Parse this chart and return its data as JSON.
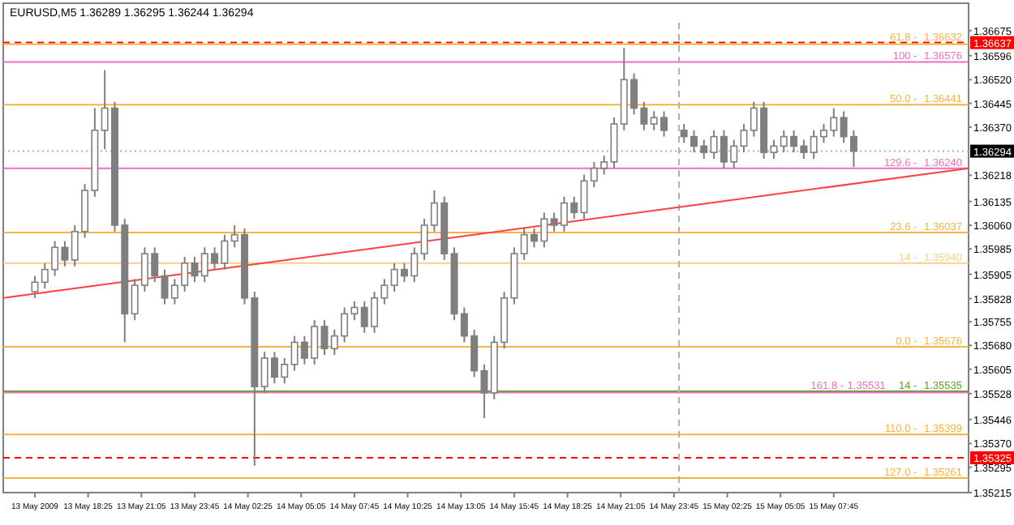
{
  "chart_data": {
    "type": "candlestick",
    "title": "EURUSD,M5  1.36289 1.36295 1.36244 1.36294",
    "color": "#7f7f7f",
    "x": [
      "2009-05-13T15:45",
      "2009-05-13T16:15",
      "2009-05-13T16:45",
      "2009-05-13T17:15",
      "2009-05-13T17:45",
      "2009-05-13T18:15",
      "2009-05-13T18:45",
      "2009-05-13T19:15",
      "2009-05-13T19:45",
      "2009-05-13T20:15",
      "2009-05-13T20:45",
      "2009-05-13T21:15",
      "2009-05-13T21:45",
      "2009-05-13T22:15",
      "2009-05-13T22:45",
      "2009-05-13T23:15",
      "2009-05-13T23:45",
      "2009-05-14T00:15",
      "2009-05-14T00:45",
      "2009-05-14T01:15",
      "2009-05-14T01:45",
      "2009-05-14T02:15",
      "2009-05-14T02:45",
      "2009-05-14T03:15",
      "2009-05-14T03:45",
      "2009-05-14T04:15",
      "2009-05-14T04:45",
      "2009-05-14T05:15",
      "2009-05-14T05:45",
      "2009-05-14T06:15",
      "2009-05-14T06:45",
      "2009-05-14T07:15",
      "2009-05-14T07:45",
      "2009-05-14T08:15",
      "2009-05-14T08:45",
      "2009-05-14T09:15",
      "2009-05-14T09:45",
      "2009-05-14T10:15",
      "2009-05-14T10:45",
      "2009-05-14T11:15",
      "2009-05-14T11:45",
      "2009-05-14T12:15",
      "2009-05-14T12:45",
      "2009-05-14T13:15",
      "2009-05-14T13:45",
      "2009-05-14T14:15",
      "2009-05-14T14:45",
      "2009-05-14T15:15",
      "2009-05-14T15:45",
      "2009-05-14T16:15",
      "2009-05-14T16:45",
      "2009-05-14T17:15",
      "2009-05-14T17:45",
      "2009-05-14T18:15",
      "2009-05-14T18:45",
      "2009-05-14T19:15",
      "2009-05-14T19:45",
      "2009-05-14T20:15",
      "2009-05-14T20:45",
      "2009-05-14T21:15",
      "2009-05-14T21:45",
      "2009-05-14T22:15",
      "2009-05-14T22:45",
      "2009-05-14T23:15",
      "2009-05-15T00:15",
      "2009-05-15T00:45",
      "2009-05-15T01:15",
      "2009-05-15T01:45",
      "2009-05-15T02:15",
      "2009-05-15T02:45",
      "2009-05-15T03:15",
      "2009-05-15T03:45",
      "2009-05-15T04:15",
      "2009-05-15T04:45",
      "2009-05-15T05:15",
      "2009-05-15T05:45",
      "2009-05-15T06:15",
      "2009-05-15T06:45",
      "2009-05-15T07:15",
      "2009-05-15T07:45",
      "2009-05-15T08:15",
      "2009-05-15T08:45"
    ],
    "ohlc": [
      [
        1.3585,
        1.359,
        1.3583,
        1.3588
      ],
      [
        1.3588,
        1.3594,
        1.3586,
        1.3592
      ],
      [
        1.3592,
        1.3601,
        1.359,
        1.3599
      ],
      [
        1.3599,
        1.3601,
        1.3593,
        1.3595
      ],
      [
        1.3595,
        1.3606,
        1.3593,
        1.3604
      ],
      [
        1.3604,
        1.3619,
        1.3602,
        1.3617
      ],
      [
        1.3617,
        1.3643,
        1.3615,
        1.3636
      ],
      [
        1.3636,
        1.3655,
        1.363,
        1.3643
      ],
      [
        1.3643,
        1.3645,
        1.3604,
        1.3606
      ],
      [
        1.3606,
        1.3608,
        1.3569,
        1.3578
      ],
      [
        1.3578,
        1.3589,
        1.3576,
        1.3587
      ],
      [
        1.3587,
        1.3599,
        1.3585,
        1.3597
      ],
      [
        1.3597,
        1.3599,
        1.3588,
        1.359
      ],
      [
        1.359,
        1.3592,
        1.3581,
        1.3583
      ],
      [
        1.3583,
        1.3589,
        1.3581,
        1.3587
      ],
      [
        1.3587,
        1.3596,
        1.3585,
        1.3594
      ],
      [
        1.3594,
        1.3596,
        1.3588,
        1.359
      ],
      [
        1.359,
        1.3599,
        1.3588,
        1.3597
      ],
      [
        1.3597,
        1.3599,
        1.3592,
        1.3594
      ],
      [
        1.3594,
        1.3603,
        1.3592,
        1.3601
      ],
      [
        1.3601,
        1.3606,
        1.3599,
        1.3603
      ],
      [
        1.3603,
        1.3605,
        1.3581,
        1.3583
      ],
      [
        1.3583,
        1.3585,
        1.353,
        1.3555
      ],
      [
        1.3555,
        1.3566,
        1.3553,
        1.3564
      ],
      [
        1.3564,
        1.3566,
        1.3556,
        1.3558
      ],
      [
        1.3558,
        1.3564,
        1.3556,
        1.3562
      ],
      [
        1.3562,
        1.3571,
        1.356,
        1.3569
      ],
      [
        1.3569,
        1.3571,
        1.3562,
        1.3564
      ],
      [
        1.3564,
        1.3576,
        1.3562,
        1.3574
      ],
      [
        1.3574,
        1.3576,
        1.3565,
        1.3567
      ],
      [
        1.3567,
        1.3573,
        1.3565,
        1.3571
      ],
      [
        1.3571,
        1.358,
        1.3569,
        1.3578
      ],
      [
        1.3578,
        1.3582,
        1.3576,
        1.358
      ],
      [
        1.358,
        1.3582,
        1.3572,
        1.3574
      ],
      [
        1.3574,
        1.3585,
        1.3572,
        1.3583
      ],
      [
        1.3583,
        1.3589,
        1.3581,
        1.3587
      ],
      [
        1.3587,
        1.3594,
        1.3585,
        1.3592
      ],
      [
        1.3592,
        1.3594,
        1.3588,
        1.359
      ],
      [
        1.359,
        1.3599,
        1.3588,
        1.3597
      ],
      [
        1.3597,
        1.3608,
        1.3595,
        1.3606
      ],
      [
        1.3606,
        1.3617,
        1.3604,
        1.3613
      ],
      [
        1.3613,
        1.3615,
        1.3595,
        1.3597
      ],
      [
        1.3597,
        1.3599,
        1.3576,
        1.3578
      ],
      [
        1.3578,
        1.358,
        1.3569,
        1.3571
      ],
      [
        1.3571,
        1.3573,
        1.3558,
        1.356
      ],
      [
        1.356,
        1.3562,
        1.3545,
        1.3553
      ],
      [
        1.3553,
        1.3571,
        1.3551,
        1.3569
      ],
      [
        1.3569,
        1.3585,
        1.3567,
        1.3583
      ],
      [
        1.3583,
        1.3599,
        1.3581,
        1.3597
      ],
      [
        1.3597,
        1.3605,
        1.3595,
        1.3603
      ],
      [
        1.3603,
        1.3605,
        1.3599,
        1.3601
      ],
      [
        1.3601,
        1.361,
        1.3599,
        1.3608
      ],
      [
        1.3608,
        1.361,
        1.3604,
        1.3606
      ],
      [
        1.3606,
        1.3615,
        1.3604,
        1.3613
      ],
      [
        1.3613,
        1.3615,
        1.3608,
        1.361
      ],
      [
        1.361,
        1.3622,
        1.3608,
        1.362
      ],
      [
        1.362,
        1.3626,
        1.3618,
        1.3624
      ],
      [
        1.3624,
        1.3628,
        1.3622,
        1.3626
      ],
      [
        1.3626,
        1.364,
        1.3624,
        1.3638
      ],
      [
        1.3638,
        1.3662,
        1.3636,
        1.3652
      ],
      [
        1.3652,
        1.3654,
        1.3641,
        1.3643
      ],
      [
        1.3643,
        1.3645,
        1.3636,
        1.3638
      ],
      [
        1.3638,
        1.3642,
        1.3636,
        1.364
      ],
      [
        1.364,
        1.3642,
        1.3634,
        1.3636
      ],
      [
        1.3636,
        1.3638,
        1.3632,
        1.3634
      ],
      [
        1.3634,
        1.3636,
        1.3629,
        1.3631
      ],
      [
        1.3631,
        1.3633,
        1.3627,
        1.3629
      ],
      [
        1.3629,
        1.3636,
        1.3627,
        1.3634
      ],
      [
        1.3634,
        1.3636,
        1.3624,
        1.3626
      ],
      [
        1.3626,
        1.3633,
        1.3624,
        1.3631
      ],
      [
        1.3631,
        1.3638,
        1.3629,
        1.3636
      ],
      [
        1.3636,
        1.3645,
        1.3634,
        1.3643
      ],
      [
        1.3643,
        1.3645,
        1.3627,
        1.3629
      ],
      [
        1.3629,
        1.3633,
        1.3627,
        1.3631
      ],
      [
        1.3631,
        1.3636,
        1.3629,
        1.3634
      ],
      [
        1.3634,
        1.3636,
        1.3629,
        1.3631
      ],
      [
        1.3631,
        1.3633,
        1.3627,
        1.3629
      ],
      [
        1.3629,
        1.3636,
        1.3627,
        1.3634
      ],
      [
        1.3634,
        1.3638,
        1.3632,
        1.3636
      ],
      [
        1.3636,
        1.3643,
        1.3634,
        1.364
      ],
      [
        1.364,
        1.3642,
        1.3632,
        1.3634
      ],
      [
        1.3634,
        1.3636,
        1.36244,
        1.36294
      ]
    ],
    "series": [
      {
        "type": "line",
        "x": [
          "2009-05-13T14:10",
          "2009-05-15T14:30"
        ],
        "values": [
          1.3583,
          1.3624
        ],
        "color": "#ff4040"
      }
    ],
    "xlim": [
      "2009-05-13T14:10",
      "2009-05-15T14:30"
    ],
    "xticks": [
      {
        "value": "2009-05-13T15:45",
        "label": "13 May 2009"
      },
      {
        "value": "2009-05-13T18:25",
        "label": "13 May 18:25"
      },
      {
        "value": "2009-05-13T21:05",
        "label": "13 May 21:05"
      },
      {
        "value": "2009-05-13T23:45",
        "label": "13 May 23:45"
      },
      {
        "value": "2009-05-14T02:25",
        "label": "14 May 02:25"
      },
      {
        "value": "2009-05-14T05:05",
        "label": "14 May 05:05"
      },
      {
        "value": "2009-05-14T07:45",
        "label": "14 May 07:45"
      },
      {
        "value": "2009-05-14T10:25",
        "label": "14 May 10:25"
      },
      {
        "value": "2009-05-14T13:05",
        "label": "14 May 13:05"
      },
      {
        "value": "2009-05-14T15:45",
        "label": "14 May 15:45"
      },
      {
        "value": "2009-05-14T18:25",
        "label": "14 May 18:25"
      },
      {
        "value": "2009-05-14T21:05",
        "label": "14 May 21:05"
      },
      {
        "value": "2009-05-14T23:45",
        "label": "14 May 23:45"
      },
      {
        "value": "2009-05-15T02:25",
        "label": "15 May 02:25"
      },
      {
        "value": "2009-05-15T05:05",
        "label": "15 May 05:05"
      },
      {
        "value": "2009-05-15T07:45",
        "label": "15 May 07:45"
      }
    ],
    "ylim": [
      1.35215,
      1.367
    ],
    "yticks": [
      1.36675,
      1.36596,
      {
        "value": 1.3652,
        "label": "1.36520"
      },
      1.36445,
      {
        "value": 1.3637,
        "label": "1.36370"
      },
      1.36218,
      1.36135,
      {
        "value": 1.3606,
        "label": "1.36060"
      },
      1.35985,
      1.35905,
      1.35828,
      1.35755,
      {
        "value": 1.3568,
        "label": "1.35680"
      },
      1.35605,
      1.35528,
      1.35446,
      {
        "value": 1.3537,
        "label": "1.35370"
      },
      1.35295,
      1.35215
    ],
    "ref_lines": [
      {
        "axis": "y",
        "value": 1.36637,
        "label": "1.36637",
        "color": "#ff0000",
        "line_style": "dashed"
      },
      {
        "axis": "y",
        "value": 1.36632,
        "label": "1.36632",
        "color": "#f5b342"
      },
      {
        "axis": "y",
        "value": 1.36576,
        "label": "1.36576",
        "color": "#ee6fc0"
      },
      {
        "axis": "y",
        "value": 1.36441,
        "label": "1.36441",
        "color": "#f5b342"
      },
      {
        "axis": "y",
        "value": 1.36294,
        "label": "1.36294",
        "color": "#b0b0b0",
        "line_style": "dotted"
      },
      {
        "axis": "y",
        "value": 1.3624,
        "label": "1.36240",
        "color": "#ee6fc0"
      },
      {
        "axis": "y",
        "value": 1.36037,
        "label": "1.36037",
        "color": "#f5b342"
      },
      {
        "axis": "y",
        "value": 1.3594,
        "label": "1.35940",
        "color": "#f8d08a"
      },
      {
        "axis": "y",
        "value": 1.35676,
        "label": "1.35676",
        "color": "#f5b342"
      },
      {
        "axis": "y",
        "value": 1.35535,
        "label": "1.35535",
        "color": "#5aa02c"
      },
      {
        "axis": "y",
        "value": 1.35531,
        "label": "1.35531",
        "color": "#ee6fc0"
      },
      {
        "axis": "y",
        "value": 1.35399,
        "label": "1.35399",
        "color": "#f5b342"
      },
      {
        "axis": "y",
        "value": 1.35325,
        "label": "1.35325",
        "color": "#ff0000",
        "line_style": "dashed"
      },
      {
        "axis": "y",
        "value": 1.35261,
        "label": "1.35261",
        "color": "#f5b342"
      },
      {
        "axis": "x",
        "value": "2009-05-15T00:00",
        "color": "#b0b0b0",
        "line_style": "dashed"
      }
    ],
    "annotations": [
      {
        "text": "61.8 -",
        "x": "2009-05-15T11:55",
        "y": 1.36632
      },
      {
        "text": "100 -",
        "x": "2009-05-15T11:55",
        "y": 1.36576
      },
      {
        "text": "50.0 -",
        "x": "2009-05-15T11:55",
        "y": 1.36441
      },
      {
        "text": "129.6 -",
        "x": "2009-05-15T11:55",
        "y": 1.3624
      },
      {
        "text": "23.6 -",
        "x": "2009-05-15T11:55",
        "y": 1.36037
      },
      {
        "text": "14 -",
        "x": "2009-05-15T11:55",
        "y": 1.3594
      },
      {
        "text": "0.0 -",
        "x": "2009-05-15T11:55",
        "y": 1.35676
      },
      {
        "text": "14 -",
        "x": "2009-05-15T11:55",
        "y": 1.35535
      },
      {
        "text": "161.8 -",
        "x": "2009-05-15T08:15",
        "y": 1.35531
      },
      {
        "text": "110.0 -",
        "x": "2009-05-15T11:55",
        "y": 1.35399
      },
      {
        "text": "127.0 -",
        "x": "2009-05-15T11:55",
        "y": 1.35261
      }
    ]
  }
}
